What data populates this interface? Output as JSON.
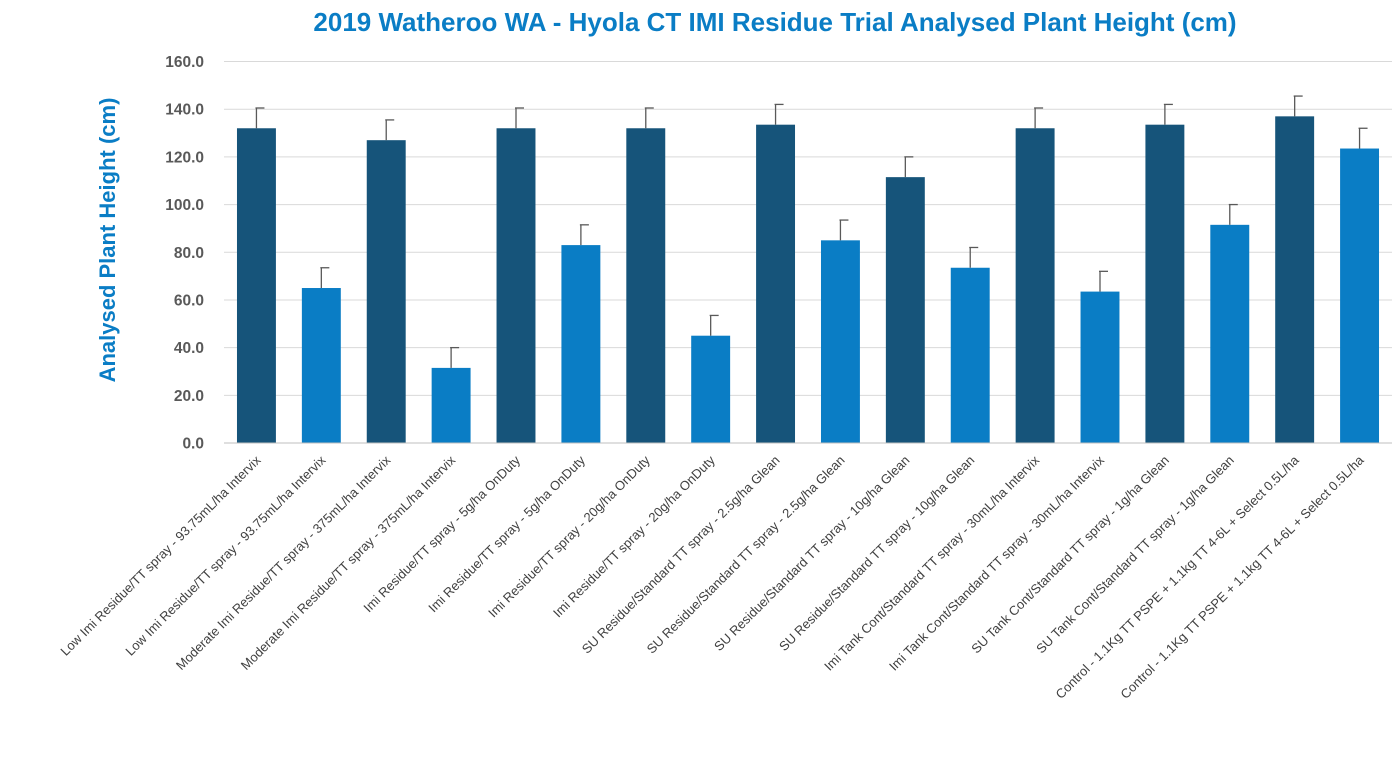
{
  "chart_data": {
    "type": "bar",
    "title": "2019 Watheroo WA - Hyola CT IMI Residue Trial Analysed Plant Height (cm)",
    "xlabel": "",
    "ylabel": "Analysed Plant Height (cm)",
    "ylim": [
      0,
      160
    ],
    "yticks": [
      "0.0",
      "20.0",
      "40.0",
      "60.0",
      "80.0",
      "100.0",
      "120.0",
      "140.0",
      "160.0"
    ],
    "grid": true,
    "legend": "none",
    "colors": {
      "dark": "#16547a",
      "light": "#0a7dc5",
      "title": "#0a7dc5",
      "grid": "#d9d9d9",
      "axis": "#bfbfbf",
      "error": "#595959"
    },
    "categories": [
      "Low Imi Residue/TT spray - 93.75mL/ha Intervix",
      "Low Imi Residue/TT spray - 93.75mL/ha Intervix",
      "Moderate Imi Residue/TT spray - 375mL/ha Intervix",
      "Moderate Imi Residue/TT spray - 375mL/ha Intervix",
      "Imi Residue/TT spray - 5g/ha OnDuty",
      "Imi Residue/TT spray - 5g/ha OnDuty",
      "Imi Residue/TT spray - 20g/ha OnDuty",
      "Imi Residue/TT spray - 20g/ha OnDuty",
      "SU Residue/Standard TT spray - 2.5g/ha Glean",
      "SU Residue/Standard TT spray - 2.5g/ha Glean",
      "SU Residue/Standard TT spray - 10g/ha Glean",
      "SU Residue/Standard TT spray - 10g/ha Glean",
      "Imi Tank Cont/Standard TT spray - 30mL/ha Intervix",
      "Imi Tank Cont/Standard TT spray - 30mL/ha Intervix",
      "SU Tank Cont/Standard TT spray - 1g/ha Glean",
      "SU Tank Cont/Standard TT spray - 1g/ha Glean",
      "Control - 1.1Kg TT PSPE + 1.1kg TT 4-6L + Select 0.5L/ha",
      "Control - 1.1Kg TT PSPE + 1.1kg TT 4-6L + Select 0.5L/ha"
    ],
    "values": [
      132,
      65,
      127,
      31.5,
      132,
      83,
      132,
      45,
      133.5,
      85,
      111.5,
      73.5,
      132,
      63.5,
      133.5,
      91.5,
      137,
      123.5
    ],
    "error": [
      8.5,
      8.5,
      8.5,
      8.5,
      8.5,
      8.5,
      8.5,
      8.5,
      8.5,
      8.5,
      8.5,
      8.5,
      8.5,
      8.5,
      8.5,
      8.5,
      8.5,
      8.5
    ],
    "bar_colors": [
      "dark",
      "light",
      "dark",
      "light",
      "dark",
      "light",
      "dark",
      "light",
      "dark",
      "light",
      "dark",
      "light",
      "dark",
      "light",
      "dark",
      "light",
      "dark",
      "light"
    ]
  }
}
